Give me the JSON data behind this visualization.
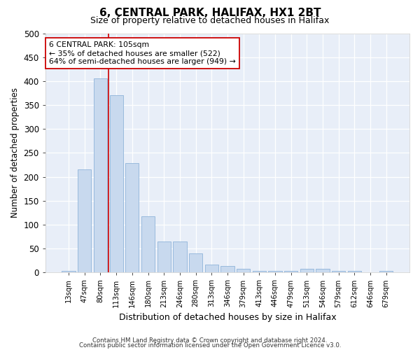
{
  "title": "6, CENTRAL PARK, HALIFAX, HX1 2BT",
  "subtitle": "Size of property relative to detached houses in Halifax",
  "xlabel": "Distribution of detached houses by size in Halifax",
  "ylabel": "Number of detached properties",
  "bar_color": "#c8d9ee",
  "bar_edge_color": "#8fb4d9",
  "categories": [
    "13sqm",
    "47sqm",
    "80sqm",
    "113sqm",
    "146sqm",
    "180sqm",
    "213sqm",
    "246sqm",
    "280sqm",
    "313sqm",
    "346sqm",
    "379sqm",
    "413sqm",
    "446sqm",
    "479sqm",
    "513sqm",
    "546sqm",
    "579sqm",
    "612sqm",
    "646sqm",
    "679sqm"
  ],
  "values": [
    3,
    215,
    405,
    370,
    228,
    118,
    65,
    65,
    40,
    17,
    13,
    7,
    3,
    3,
    3,
    7,
    7,
    3,
    3,
    1,
    3
  ],
  "vline_x": 2.5,
  "vline_color": "#cc0000",
  "annotation_line1": "6 CENTRAL PARK: 105sqm",
  "annotation_line2": "← 35% of detached houses are smaller (522)",
  "annotation_line3": "64% of semi-detached houses are larger (949) →",
  "annotation_box_color": "#ffffff",
  "annotation_box_edge_color": "#cc0000",
  "ylim": [
    0,
    500
  ],
  "yticks": [
    0,
    50,
    100,
    150,
    200,
    250,
    300,
    350,
    400,
    450,
    500
  ],
  "background_color": "#e8eef8",
  "footer_line1": "Contains HM Land Registry data © Crown copyright and database right 2024.",
  "footer_line2": "Contains public sector information licensed under the Open Government Licence v3.0."
}
